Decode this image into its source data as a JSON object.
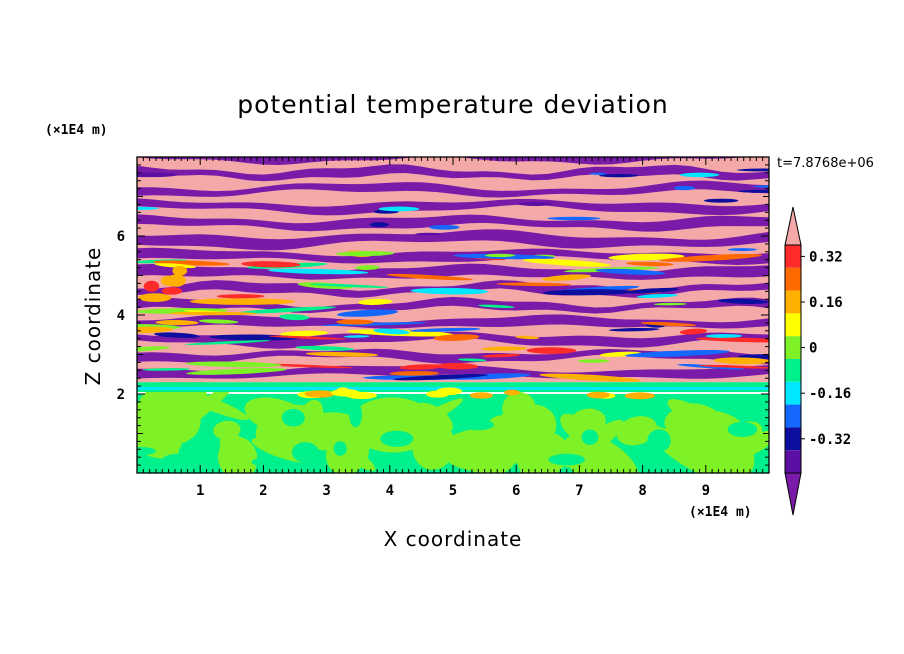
{
  "chart_data": {
    "type": "heatmap",
    "title": "potential temperature deviation",
    "xlabel": "X coordinate",
    "ylabel": "Z coordinate",
    "x_unit": "(×1E4 m)",
    "y_unit": "(×1E4 m)",
    "time_label": "t=7.8768e+06",
    "xlim": [
      0,
      10
    ],
    "ylim": [
      0,
      8
    ],
    "x_ticks": [
      "1",
      "2",
      "3",
      "4",
      "5",
      "6",
      "7",
      "8",
      "9"
    ],
    "y_ticks": [
      "2",
      "4",
      "6"
    ],
    "colorbar": {
      "levels": [
        {
          "value": "below",
          "color": "#7a1aa8"
        },
        {
          "value": -0.4,
          "color": "#5b0fa3"
        },
        {
          "value": -0.32,
          "color": "#0d0d9e"
        },
        {
          "value": -0.24,
          "color": "#1468ff"
        },
        {
          "value": -0.16,
          "color": "#00e8ff"
        },
        {
          "value": -0.08,
          "color": "#00f08c"
        },
        {
          "value": 0.0,
          "color": "#7ef227"
        },
        {
          "value": 0.08,
          "color": "#ffff00"
        },
        {
          "value": 0.16,
          "color": "#ffb000"
        },
        {
          "value": 0.24,
          "color": "#ff6a00"
        },
        {
          "value": 0.32,
          "color": "#ff2a2a"
        },
        {
          "value": "above",
          "color": "#f5a8a8"
        }
      ],
      "tick_labels": [
        "0.32",
        "0.16",
        "0",
        "-0.16",
        "-0.32"
      ],
      "extend": "both"
    },
    "description_fields": {
      "lower_layer": "z 0 to 2: mixed green (0 to 0.08) and teal (-0.08 to 0)",
      "upper_layer": "z 2 to 8: alternating horizontal bands of pink (above 0.4) and purple (below -0.4)"
    }
  }
}
